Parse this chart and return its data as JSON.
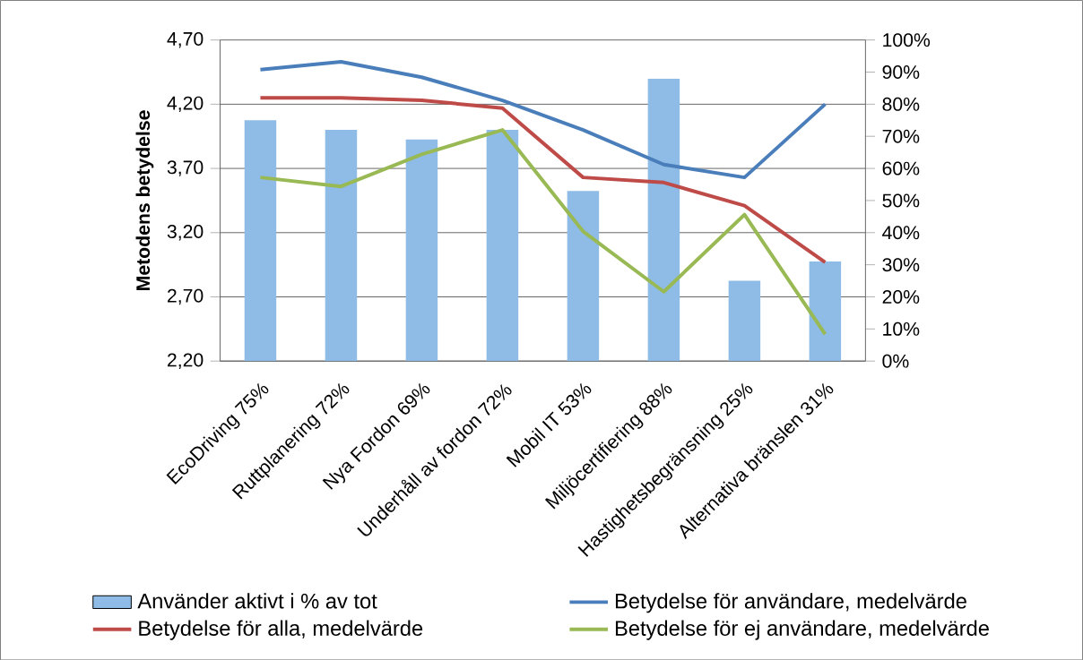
{
  "chart_data": {
    "type": "bar",
    "ylabel": "Metodens betydelse",
    "categories": [
      "EcoDriving 75%",
      "Ruttplanering 72%",
      "Nya Fordon 69%",
      "Underhåll av fordon 72%",
      "Mobil IT 53%",
      "Miljöcertifiering 88%",
      "Hastighetsbegränsning 25%",
      "Alternativa  bränslen 31%"
    ],
    "series": [
      {
        "name": "Använder aktivt i % av tot",
        "axis": "y2",
        "color": "#8fbce6",
        "values": [
          75,
          72,
          69,
          72,
          53,
          88,
          25,
          31
        ]
      },
      {
        "name": "Betydelse för användare, medelvärde",
        "type": "line",
        "color": "#4a7ebb",
        "values": [
          4.47,
          4.53,
          4.41,
          4.23,
          4.0,
          3.73,
          3.63,
          4.2
        ]
      },
      {
        "name": "Betydelse för alla, medelvärde",
        "type": "line",
        "color": "#be4b48",
        "values": [
          4.25,
          4.25,
          4.23,
          4.17,
          3.63,
          3.59,
          3.41,
          2.97
        ]
      },
      {
        "name": "Betydelse för ej användare, medelvärde",
        "type": "line",
        "color": "#98b954",
        "values": [
          3.63,
          3.56,
          3.81,
          4.0,
          3.21,
          2.74,
          3.34,
          2.41
        ]
      }
    ],
    "ylim": [
      2.2,
      4.7
    ],
    "yticks": [
      {
        "value": 2.2,
        "label": "2,20"
      },
      {
        "value": 2.7,
        "label": "2,70"
      },
      {
        "value": 3.2,
        "label": "3,20"
      },
      {
        "value": 3.7,
        "label": "3,70"
      },
      {
        "value": 4.2,
        "label": "4,20"
      },
      {
        "value": 4.7,
        "label": "4,70"
      }
    ],
    "y2lim": [
      0,
      100
    ],
    "y2ticks": [
      {
        "value": 0,
        "label": "0%"
      },
      {
        "value": 10,
        "label": "10%"
      },
      {
        "value": 20,
        "label": "20%"
      },
      {
        "value": 30,
        "label": "30%"
      },
      {
        "value": 40,
        "label": "40%"
      },
      {
        "value": 50,
        "label": "50%"
      },
      {
        "value": 60,
        "label": "60%"
      },
      {
        "value": 70,
        "label": "70%"
      },
      {
        "value": 80,
        "label": "80%"
      },
      {
        "value": 90,
        "label": "90%"
      },
      {
        "value": 100,
        "label": "100%"
      }
    ],
    "grid": "y",
    "legend": "bottom"
  }
}
